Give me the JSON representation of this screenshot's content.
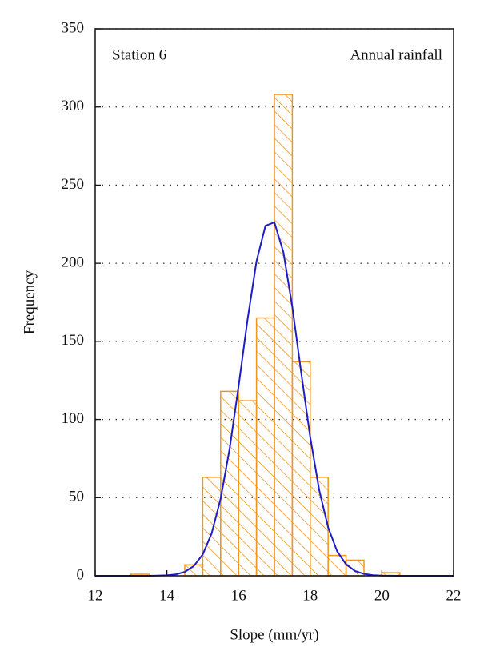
{
  "chart_data": {
    "type": "histogram",
    "xlabel": "Slope (mm/yr)",
    "ylabel": "Frequency",
    "annotations": [
      "Station 6",
      "Annual rainfall"
    ],
    "xlim": [
      12,
      22
    ],
    "ylim": [
      0,
      350
    ],
    "xticks": [
      12,
      14,
      16,
      18,
      20,
      22
    ],
    "yticks": [
      0,
      50,
      100,
      150,
      200,
      250,
      300,
      350
    ],
    "grid": true,
    "color": "#f0961e",
    "bins": [
      13,
      13.5,
      14,
      14.5,
      15,
      15.5,
      16,
      16.5,
      17,
      17.5,
      18,
      18.5,
      19,
      19.5,
      20,
      20.5
    ],
    "values": [
      1,
      0,
      0,
      7,
      63,
      118,
      112,
      165,
      308,
      137,
      63,
      13,
      10,
      0,
      2
    ],
    "curve": {
      "type": "line",
      "color": "#1c1cc8",
      "x": [
        12,
        12.5,
        13,
        13.5,
        13.75,
        14,
        14.25,
        14.5,
        14.75,
        15,
        15.25,
        15.5,
        15.75,
        16,
        16.25,
        16.5,
        16.75,
        17,
        17.25,
        17.5,
        17.75,
        18,
        18.25,
        18.5,
        18.75,
        19,
        19.25,
        19.5,
        19.75,
        20,
        20.5,
        21,
        22
      ],
      "values": [
        0,
        0,
        0,
        0,
        0.1,
        0.3,
        0.9,
        2.5,
        6.2,
        13.6,
        27.2,
        49.3,
        81.2,
        121.1,
        163.9,
        201.2,
        224.0,
        226.2,
        207.2,
        172.1,
        129.6,
        88.6,
        54.9,
        30.9,
        15.7,
        7.3,
        3.1,
        1.2,
        0.4,
        0.1,
        0,
        0,
        0
      ]
    }
  }
}
